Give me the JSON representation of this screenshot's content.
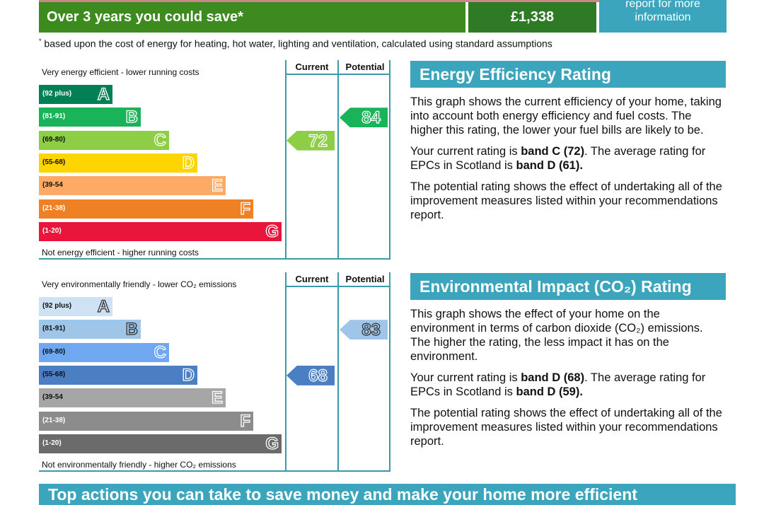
{
  "savings": {
    "label": "Over 3 years you could save*",
    "amount": "£1,338",
    "info": "report for more information"
  },
  "footnote": "based upon the cost of energy for heating, hot water, lighting and ventilation, calculated using standard assumptions",
  "columns": {
    "current": "Current",
    "potential": "Potential"
  },
  "bands": [
    {
      "letter": "A",
      "range": "(92 plus)"
    },
    {
      "letter": "B",
      "range": "(81-91)"
    },
    {
      "letter": "C",
      "range": "(69-80)"
    },
    {
      "letter": "D",
      "range": "(55-68)"
    },
    {
      "letter": "E",
      "range": "(39-54"
    },
    {
      "letter": "F",
      "range": "(21-38)"
    },
    {
      "letter": "G",
      "range": "(1-20)"
    }
  ],
  "energy": {
    "top": "Very energy efficient - lower running costs",
    "bottom": "Not energy efficient - higher running costs",
    "current": "72",
    "potential": "84",
    "current_band": "C",
    "potential_band": "B",
    "colors": [
      "#008054",
      "#19b459",
      "#8dce46",
      "#ffd500",
      "#fcaa65",
      "#ef8023",
      "#e9153b"
    ],
    "title": "Energy Efficiency Rating",
    "p1": "This graph shows the current efficiency of your home, taking into account both energy efficiency and fuel costs. The higher this rating, the lower your fuel bills are likely to be.",
    "p2a": "Your current rating is ",
    "p2b": "band C (72)",
    "p2c": ". The average rating for EPCs in Scotland is ",
    "p2d": "band D (61).",
    "p3": "The potential rating shows the effect of undertaking all of the improvement measures listed within your recommendations report."
  },
  "environment": {
    "top": "Very environmentally friendly - lower CO₂ emissions",
    "bottom": "Not environmentally friendly - higher CO₂ emissions",
    "current": "68",
    "potential": "83",
    "current_band": "D",
    "potential_band": "B",
    "colors": [
      "#cfe2f3",
      "#9fc5e8",
      "#6fa8f0",
      "#4a7fc4",
      "#a6a6a6",
      "#8c8c8c",
      "#6b6b6b"
    ],
    "title": "Environmental Impact (CO₂) Rating",
    "p1": "This graph shows the effect of your home on the environment in terms of carbon dioxide (CO₂) emissions. The higher the rating, the less impact it has on the environment.",
    "p2a": "Your current rating is ",
    "p2b": "band D (68)",
    "p2c": ". The average rating for EPCs in Scotland is ",
    "p2d": "band D (59).",
    "p3": "The potential rating shows the effect of undertaking all of the improvement measures listed within your recommendations report."
  },
  "bottom_banner": "Top actions you can take to save money and make your home more efficient"
}
